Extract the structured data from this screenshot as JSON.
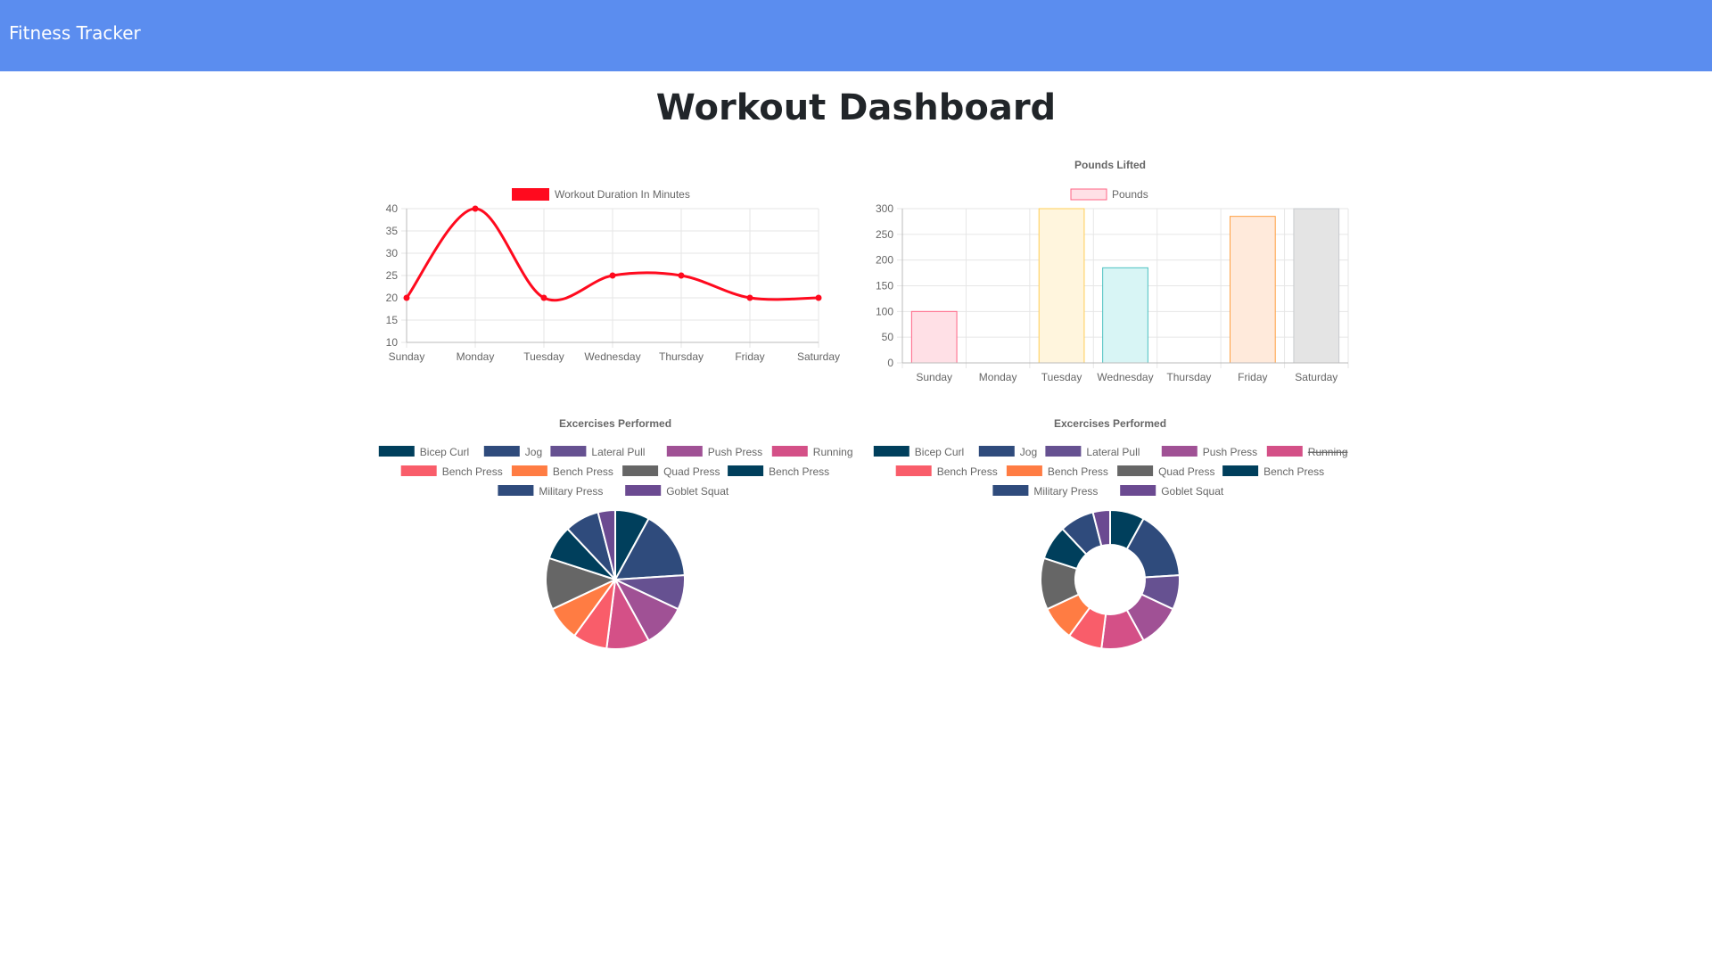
{
  "navbar": {
    "brand": "Fitness Tracker"
  },
  "page": {
    "title": "Workout Dashboard"
  },
  "chart_data": [
    {
      "type": "line",
      "title": "",
      "categories": [
        "Sunday",
        "Monday",
        "Tuesday",
        "Wednesday",
        "Thursday",
        "Friday",
        "Saturday"
      ],
      "series": [
        {
          "name": "Workout Duration In Minutes",
          "values": [
            20,
            40,
            20,
            25,
            25,
            20,
            20
          ],
          "color": "#ff0a1e"
        }
      ],
      "ylim": [
        10,
        40
      ],
      "yticks": [
        10,
        15,
        20,
        25,
        30,
        35,
        40
      ],
      "legend": "top",
      "grid": true
    },
    {
      "type": "bar",
      "title": "Pounds Lifted",
      "categories": [
        "Sunday",
        "Monday",
        "Tuesday",
        "Wednesday",
        "Thursday",
        "Friday",
        "Saturday"
      ],
      "series": [
        {
          "name": "Pounds",
          "values": [
            100,
            0,
            300,
            185,
            0,
            285,
            300
          ]
        }
      ],
      "fills": [
        "#ffe0e6",
        "#ffffff",
        "#fff5dd",
        "#d8f5f5",
        "#ffffff",
        "#ffeadb",
        "#e4e4e4"
      ],
      "strokes": [
        "#ff6384",
        "#ffffff",
        "#ffce56",
        "#4bc0c0",
        "#ffffff",
        "#ff9f40",
        "#c9cbcf"
      ],
      "ylim": [
        0,
        300
      ],
      "yticks": [
        0,
        50,
        100,
        150,
        200,
        250,
        300
      ],
      "legend": "top",
      "grid": true
    },
    {
      "type": "pie",
      "title": "Excercises Performed",
      "labels": [
        "Bicep Curl",
        "Jog",
        "Lateral Pull",
        "Push Press",
        "Running",
        "Bench Press",
        "Bench Press",
        "Quad Press",
        "Bench Press",
        "Military Press",
        "Goblet Squat"
      ],
      "values": [
        8,
        16,
        8,
        10,
        10,
        8,
        8,
        12,
        8,
        8,
        4
      ],
      "colors": [
        "#003f5c",
        "#2f4b7c",
        "#665191",
        "#a05195",
        "#d45087",
        "#f95d6a",
        "#ff7c43",
        "#666666",
        "#003f5c",
        "#2f4b7c",
        "#6b4a91"
      ],
      "hidden": [],
      "legend": "top"
    },
    {
      "type": "doughnut",
      "title": "Excercises Performed",
      "labels": [
        "Bicep Curl",
        "Jog",
        "Lateral Pull",
        "Push Press",
        "Running",
        "Bench Press",
        "Bench Press",
        "Quad Press",
        "Bench Press",
        "Military Press",
        "Goblet Squat"
      ],
      "values": [
        8,
        16,
        8,
        10,
        10,
        8,
        8,
        12,
        8,
        8,
        4
      ],
      "colors": [
        "#003f5c",
        "#2f4b7c",
        "#665191",
        "#a05195",
        "#d45087",
        "#f95d6a",
        "#ff7c43",
        "#666666",
        "#003f5c",
        "#2f4b7c",
        "#6b4a91"
      ],
      "hidden": [
        "Running"
      ],
      "legend": "top"
    }
  ]
}
